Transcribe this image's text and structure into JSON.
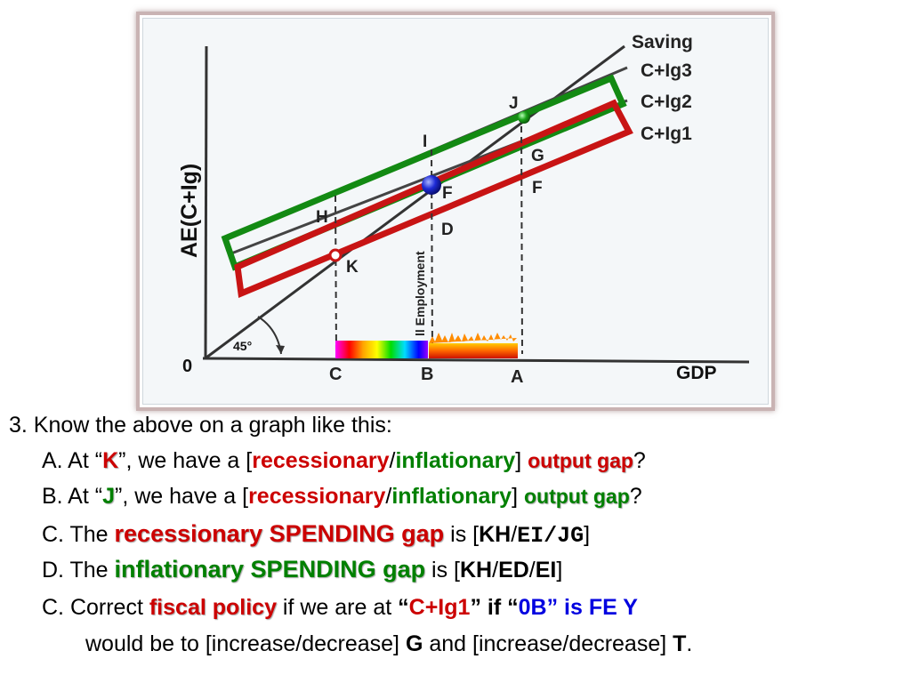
{
  "figure": {
    "y_axis_label": "AE(C+Ig)",
    "x_axis_label": "GDP",
    "origin_label": "0",
    "angle_label": "45°",
    "curve_labels": [
      "Saving",
      "C+Ig3",
      "C+Ig2",
      "C+Ig1"
    ],
    "point_labels": {
      "J": "J",
      "I": "I",
      "G": "G",
      "F_lower": "F",
      "F_upper": "F",
      "H": "H",
      "D": "D",
      "K": "K"
    },
    "x_ticks": [
      "C",
      "B",
      "A"
    ],
    "vertical_text": "ll Employment",
    "colors": {
      "green_box": "#138a13",
      "red_box": "#c81414",
      "green_point": "#1aa31a",
      "blue_point": "#1d2bd6"
    }
  },
  "questions": {
    "intro": "3. Know the above on a graph like this:",
    "a": {
      "prefix": "A. At “",
      "point": "K",
      "mid": "”, we have a  [",
      "opt1": "recessionary",
      "slash": "/",
      "opt2": "inflationary",
      "close": "] ",
      "gap": "output gap",
      "end": "?"
    },
    "b": {
      "prefix": "B. At “",
      "point": "J",
      "mid": "”, we have a [",
      "opt1": "recessionary",
      "slash": "/",
      "opt2": "inflationary",
      "close": "] ",
      "gap": "output gap",
      "end": "?"
    },
    "c": {
      "prefix": "C. The ",
      "term": "recessionary SPENDING gap",
      "mid": " is [",
      "a1": "KH",
      "slash": "/",
      "a2": "EI/JG",
      "end": "]"
    },
    "d": {
      "prefix": "D. The ",
      "term": "inflationary SPENDING gap",
      "mid": " is [",
      "a1": "KH",
      "s1": "/",
      "a2": "ED",
      "s2": "/",
      "a3": "EI",
      "end": "]"
    },
    "e": {
      "prefix": "C. Correct ",
      "term": "fiscal policy",
      "mid": " if we are at ",
      "q1": "“",
      "curve": "C+Ig1",
      "q2": "” if “",
      "pt": "0B”",
      "fe": " is FE  Y"
    },
    "f": {
      "prefix": "would be to [increase/decrease] ",
      "g": "G",
      "mid": " and [increase/decrease] ",
      "t": "T",
      "end": "."
    }
  }
}
